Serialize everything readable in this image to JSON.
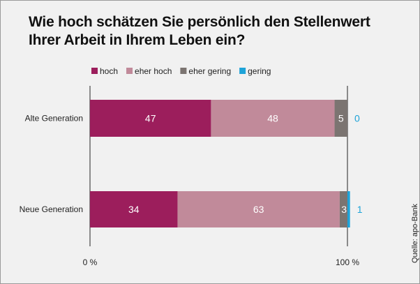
{
  "header": {
    "title": "Wie hoch schätzen Sie persönlich den Stellenwert Ihrer Arbeit in Ihrem Leben ein?"
  },
  "footer": {
    "source": "Quelle: apo-Bank"
  },
  "chart_data": {
    "type": "bar",
    "orientation": "horizontal",
    "stacked": true,
    "title": "Wie hoch schätzen Sie persönlich den Stellenwert Ihrer Arbeit in Ihrem Leben ein?",
    "categories": [
      "Alte Generation",
      "Neue Generation"
    ],
    "series": [
      {
        "name": "hoch",
        "color": "#9c1e5c",
        "label_color": "#ffffff",
        "values": [
          47,
          34
        ]
      },
      {
        "name": "eher hoch",
        "color": "#c18a9a",
        "label_color": "#ffffff",
        "values": [
          48,
          63
        ]
      },
      {
        "name": "eher gering",
        "color": "#7b7471",
        "label_color": "#ffffff",
        "values": [
          5,
          3
        ]
      },
      {
        "name": "gering",
        "color": "#1ea3d8",
        "label_color": "#1ea3d8",
        "values": [
          0,
          1
        ]
      }
    ],
    "xlim": [
      0,
      100
    ],
    "ticks": [
      {
        "value": 0,
        "label": "0 %"
      },
      {
        "value": 100,
        "label": "100 %"
      }
    ],
    "legend": "top-left",
    "grid": false
  }
}
